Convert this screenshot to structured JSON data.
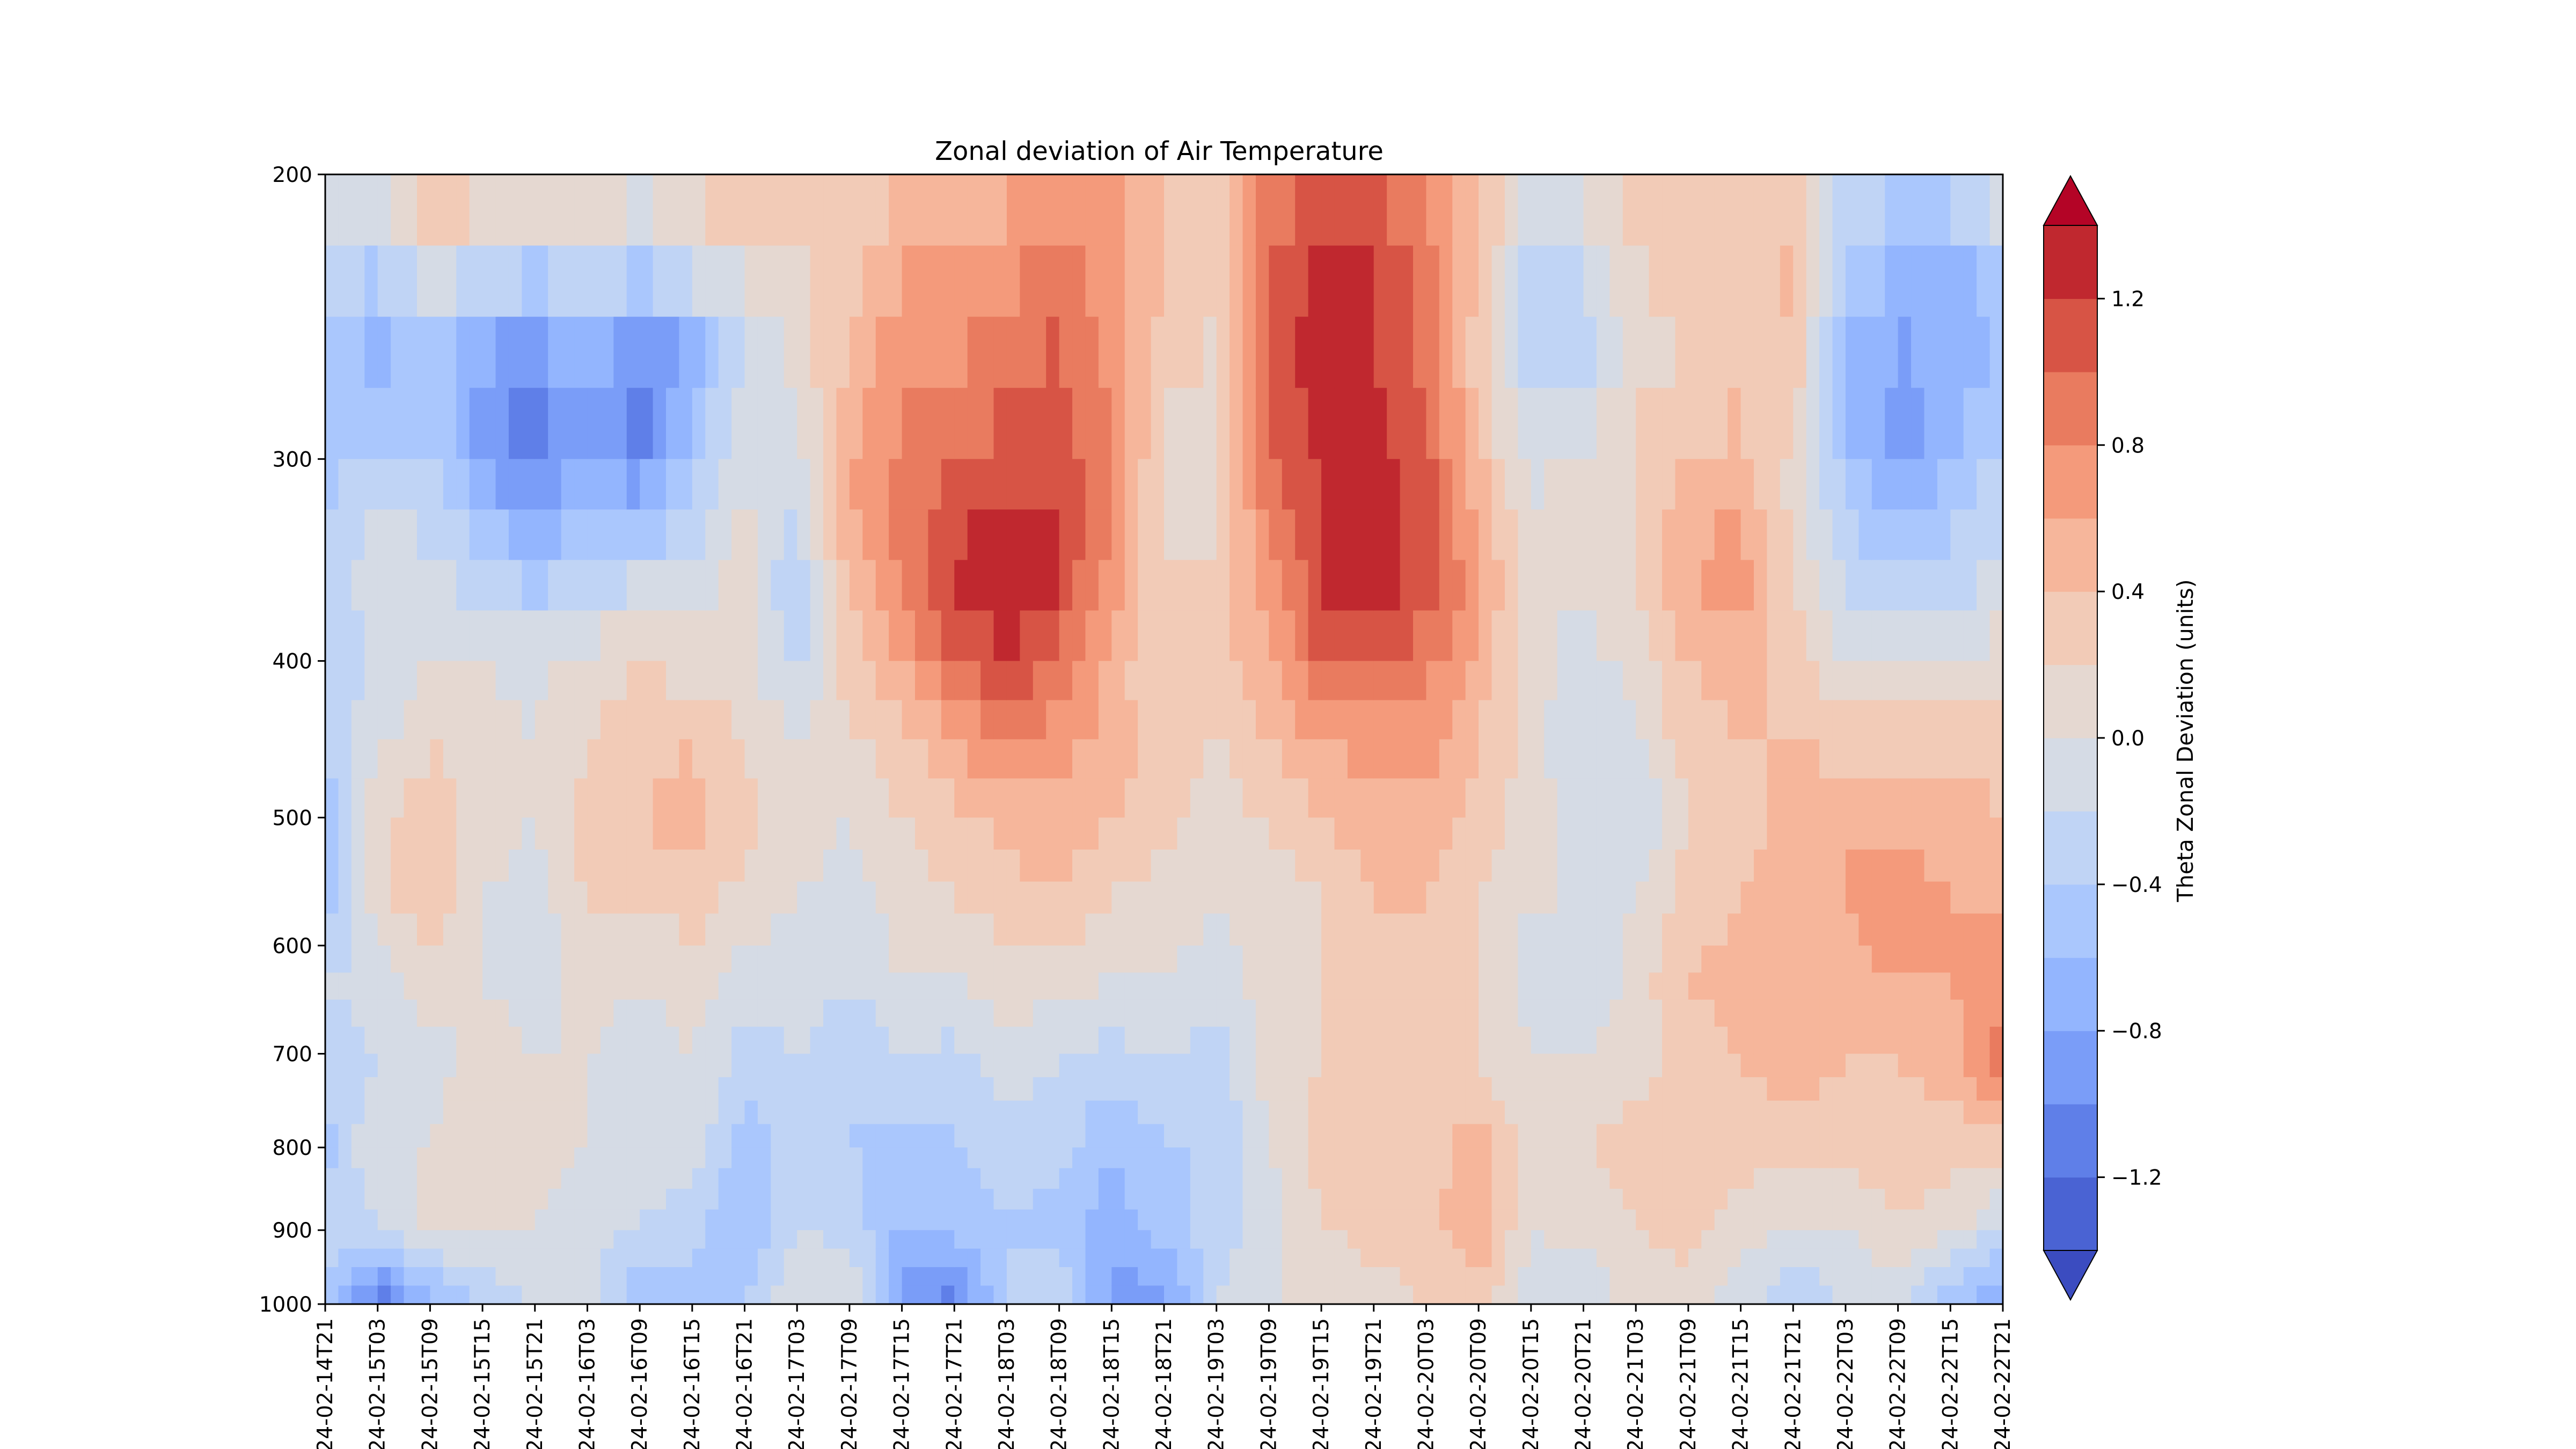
{
  "chart_data": {
    "type": "heatmap",
    "title": "Zonal deviation of Air Temperature",
    "xlabel": "",
    "ylabel": "",
    "x_ticks": [
      "24-02-14T21",
      "24-02-15T03",
      "24-02-15T09",
      "24-02-15T15",
      "24-02-15T21",
      "24-02-16T03",
      "24-02-16T09",
      "24-02-16T15",
      "24-02-16T21",
      "24-02-17T03",
      "24-02-17T09",
      "24-02-17T15",
      "24-02-17T21",
      "24-02-18T03",
      "24-02-18T09",
      "24-02-18T15",
      "24-02-18T21",
      "24-02-19T03",
      "24-02-19T09",
      "24-02-19T15",
      "24-02-19T21",
      "24-02-20T03",
      "24-02-20T09",
      "24-02-20T15",
      "24-02-20T21",
      "24-02-21T03",
      "24-02-21T09",
      "24-02-21T15",
      "24-02-21T21",
      "24-02-22T03",
      "24-02-22T09",
      "24-02-22T15",
      "24-02-22T21"
    ],
    "y_ticks": [
      "200",
      "300",
      "400",
      "500",
      "600",
      "700",
      "800",
      "900",
      "1000"
    ],
    "y_levels": [
      200,
      300,
      400,
      500,
      600,
      700,
      800,
      900,
      1000
    ],
    "y_scale": "log",
    "y_inverted": true,
    "ylim": [
      1000,
      200
    ],
    "colorbar": {
      "label": "Theta Zonal Deviation (units)",
      "tick_labels": [
        "1.2",
        "0.8",
        "0.4",
        "0.0",
        "−0.4",
        "−0.8",
        "−1.2"
      ],
      "tick_values": [
        1.2,
        0.8,
        0.4,
        0.0,
        -0.4,
        -0.8,
        -1.2
      ],
      "levels": [
        -1.4,
        -1.2,
        -1.0,
        -0.8,
        -0.6,
        -0.4,
        -0.2,
        0.0,
        0.2,
        0.4,
        0.6,
        0.8,
        1.0,
        1.2,
        1.4
      ],
      "extend": "both",
      "colors": [
        "#3b4cc0",
        "#4a63d3",
        "#5f7fe8",
        "#7a9df8",
        "#93b5fe",
        "#aac7fd",
        "#c0d4f5",
        "#d5dbe5",
        "#e5d8d1",
        "#f2cbb7",
        "#f6b69b",
        "#f49a7b",
        "#e97b5f",
        "#d75445",
        "#c0282f",
        "#b40426"
      ]
    },
    "values": [
      [
        0.0,
        -0.2,
        -0.4,
        -0.5,
        -0.4,
        -0.3,
        -0.4,
        -0.2,
        -0.7,
        -0.6,
        -0.2,
        -0.3,
        -0.5,
        -0.3,
        -0.4
      ],
      [
        0.1,
        -0.3,
        -0.7,
        -0.5,
        -0.3,
        0.0,
        -0.2,
        -0.1,
        0.2,
        0.1,
        -0.1,
        -0.2,
        0.0,
        -0.2,
        -1.2
      ],
      [
        0.5,
        0.0,
        -0.4,
        -0.4,
        -0.3,
        -0.1,
        0.0,
        0.2,
        0.3,
        0.4,
        0.1,
        -0.1,
        0.0,
        0.1,
        -0.7
      ],
      [
        0.4,
        -0.1,
        -0.7,
        -0.9,
        -0.7,
        -0.3,
        0.0,
        0.1,
        0.1,
        0.0,
        0.0,
        0.1,
        0.2,
        0.1,
        -0.4
      ],
      [
        0.3,
        -0.2,
        -0.9,
        -1.1,
        -0.9,
        -0.5,
        -0.1,
        0.0,
        0.0,
        -0.1,
        -0.1,
        0.0,
        0.1,
        0.0,
        -0.2
      ],
      [
        0.2,
        -0.1,
        -0.5,
        -0.8,
        -0.7,
        -0.3,
        0.1,
        0.2,
        0.3,
        0.2,
        0.1,
        0.0,
        0.0,
        -0.1,
        -0.1
      ],
      [
        0.1,
        -0.2,
        -1.0,
        -1.1,
        -0.8,
        -0.2,
        0.2,
        0.3,
        0.4,
        0.2,
        0.0,
        -0.1,
        0.0,
        -0.2,
        -0.6
      ],
      [
        0.3,
        0.0,
        -0.7,
        -0.6,
        -0.4,
        -0.1,
        0.1,
        0.4,
        0.5,
        0.3,
        0.1,
        0.0,
        -0.1,
        -0.3,
        -0.5
      ],
      [
        0.4,
        0.1,
        -0.2,
        -0.1,
        0.0,
        0.1,
        0.1,
        0.2,
        0.3,
        0.1,
        -0.1,
        -0.3,
        -0.5,
        -0.6,
        -0.4
      ],
      [
        0.2,
        0.2,
        0.1,
        0.0,
        -0.2,
        -0.4,
        -0.3,
        0.0,
        0.1,
        0.0,
        -0.1,
        -0.2,
        -0.3,
        -0.2,
        0.0
      ],
      [
        0.2,
        0.3,
        0.4,
        0.5,
        0.6,
        0.5,
        0.3,
        0.2,
        0.0,
        -0.1,
        -0.2,
        -0.4,
        -0.4,
        -0.3,
        0.0
      ],
      [
        0.4,
        0.6,
        0.7,
        0.8,
        0.9,
        0.8,
        0.6,
        0.3,
        0.2,
        0.1,
        0.0,
        -0.2,
        -0.5,
        -0.6,
        -0.9
      ],
      [
        0.5,
        0.6,
        0.7,
        0.9,
        1.1,
        1.2,
        1.0,
        0.6,
        0.3,
        0.2,
        0.0,
        -0.3,
        -0.4,
        -0.5,
        -1.1
      ],
      [
        0.5,
        0.7,
        0.9,
        1.0,
        1.2,
        1.4,
        1.2,
        0.8,
        0.5,
        0.3,
        0.1,
        -0.1,
        -0.3,
        -0.4,
        -0.4
      ],
      [
        0.6,
        0.8,
        1.0,
        1.1,
        1.2,
        1.2,
        1.0,
        0.7,
        0.5,
        0.4,
        0.1,
        -0.2,
        -0.3,
        -0.5,
        -0.2
      ],
      [
        0.6,
        0.7,
        0.7,
        0.8,
        0.8,
        0.7,
        0.5,
        0.5,
        0.4,
        0.2,
        0.0,
        -0.3,
        -0.6,
        -0.7,
        -0.9
      ],
      [
        0.4,
        0.4,
        0.3,
        0.2,
        0.1,
        0.2,
        0.2,
        0.3,
        0.3,
        0.1,
        0.0,
        -0.2,
        -0.4,
        -0.5,
        -0.9
      ],
      [
        0.3,
        0.3,
        0.2,
        0.1,
        0.1,
        0.3,
        0.3,
        0.2,
        0.1,
        0.0,
        -0.1,
        -0.3,
        -0.4,
        -0.3,
        -0.2
      ],
      [
        0.8,
        1.0,
        1.1,
        1.0,
        0.9,
        0.7,
        0.6,
        0.4,
        0.2,
        0.1,
        0.1,
        0.1,
        0.0,
        -0.1,
        0.0
      ],
      [
        1.1,
        1.2,
        1.3,
        1.3,
        1.2,
        1.2,
        1.0,
        0.6,
        0.4,
        0.2,
        0.2,
        0.2,
        0.3,
        0.2,
        0.0
      ],
      [
        1.0,
        1.2,
        1.2,
        1.3,
        1.3,
        1.4,
        1.1,
        0.7,
        0.5,
        0.4,
        0.3,
        0.3,
        0.4,
        0.3,
        0.1
      ],
      [
        0.8,
        0.9,
        0.9,
        1.0,
        1.1,
        1.1,
        0.9,
        0.7,
        0.5,
        0.4,
        0.3,
        0.2,
        0.3,
        0.3,
        0.2
      ],
      [
        0.4,
        0.4,
        0.3,
        0.4,
        0.5,
        0.7,
        0.5,
        0.4,
        0.3,
        0.2,
        0.2,
        0.2,
        0.5,
        0.6,
        0.3
      ],
      [
        0.0,
        -0.3,
        -0.4,
        -0.2,
        0.0,
        0.0,
        0.1,
        0.1,
        0.1,
        0.0,
        -0.1,
        0.0,
        0.1,
        0.0,
        -0.1
      ],
      [
        0.1,
        -0.2,
        -0.3,
        -0.1,
        0.1,
        0.1,
        -0.1,
        -0.2,
        -0.1,
        0.0,
        -0.2,
        0.0,
        0.2,
        0.1,
        -0.2
      ],
      [
        0.3,
        0.2,
        0.1,
        0.2,
        0.2,
        0.2,
        0.1,
        0.0,
        -0.2,
        0.0,
        0.1,
        0.1,
        0.3,
        0.2,
        0.1
      ],
      [
        0.4,
        0.3,
        0.2,
        0.3,
        0.5,
        0.6,
        0.4,
        0.3,
        0.2,
        0.3,
        0.4,
        0.3,
        0.3,
        0.3,
        0.1
      ],
      [
        0.3,
        0.2,
        0.3,
        0.4,
        0.6,
        0.7,
        0.5,
        0.4,
        0.3,
        0.4,
        0.5,
        0.4,
        0.3,
        0.1,
        -0.1
      ],
      [
        0.2,
        0.5,
        0.4,
        0.2,
        0.1,
        0.2,
        0.3,
        0.4,
        0.5,
        0.6,
        0.6,
        0.5,
        0.3,
        0.0,
        -0.4
      ],
      [
        -0.2,
        -0.4,
        -0.6,
        -0.6,
        -0.4,
        -0.2,
        0.0,
        0.3,
        0.6,
        0.6,
        0.5,
        0.4,
        0.3,
        0.0,
        -0.2
      ],
      [
        -0.3,
        -0.6,
        -0.8,
        -0.9,
        -0.7,
        -0.4,
        0.0,
        0.3,
        0.5,
        0.8,
        0.6,
        0.4,
        0.3,
        0.2,
        -0.1
      ],
      [
        -0.2,
        -0.7,
        -0.7,
        -0.7,
        -0.5,
        -0.3,
        0.0,
        0.3,
        0.5,
        0.6,
        0.6,
        0.5,
        0.3,
        0.1,
        -0.6
      ],
      [
        0.1,
        -0.4,
        -0.6,
        -0.4,
        -0.3,
        -0.1,
        0.1,
        0.3,
        0.4,
        0.6,
        0.7,
        0.9,
        0.3,
        -0.2,
        -0.8
      ]
    ]
  }
}
